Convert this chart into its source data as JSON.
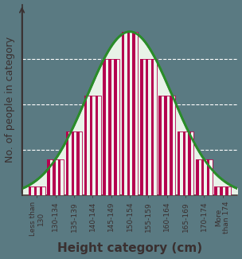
{
  "categories": [
    "Less than\n130",
    "130-134",
    "135-139",
    "140-144",
    "145-149",
    "150-154",
    "155-159",
    "160-164",
    "165-169",
    "170-174",
    "More\nthan 174"
  ],
  "bar_values": [
    0.5,
    2.0,
    3.5,
    5.5,
    7.5,
    9.0,
    7.5,
    5.5,
    3.5,
    2.0,
    0.5
  ],
  "bar_color": "#b5004f",
  "stripe_color": "#f0f5ee",
  "curve_color": "#2a8c2a",
  "curve_fill_color": "#e8f2e8",
  "background_color": "#5a7a82",
  "ylabel": "No. of people in category",
  "xlabel": "Height category (cm)",
  "ylim": [
    0,
    10.5
  ],
  "grid_color": "white",
  "grid_style": "--",
  "yticks": [
    2.5,
    5.0,
    7.5
  ],
  "axis_label_fontsize": 9,
  "tick_fontsize": 6.5,
  "xlabel_fontsize": 11,
  "text_color": "#3a3030",
  "axis_color": "#3a3030",
  "mu": 5.0,
  "sigma": 2.3,
  "amplitude": 9.0
}
